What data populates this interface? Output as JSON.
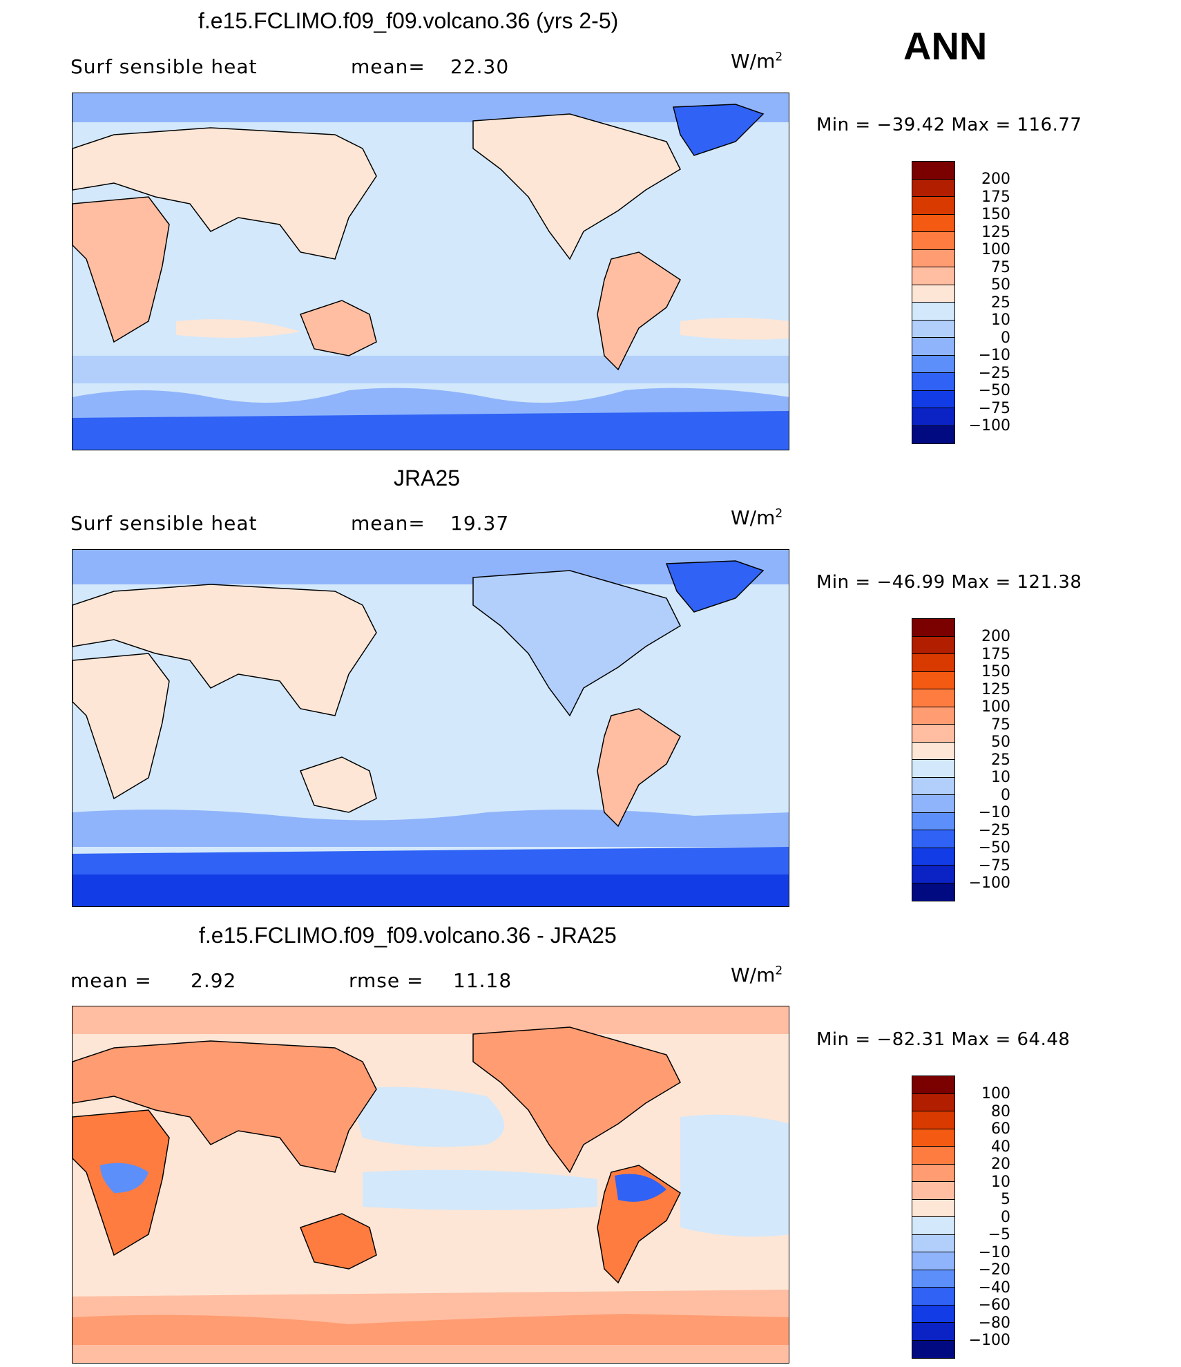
{
  "season": "ANN",
  "units_base": "W/m",
  "units_exp": "2",
  "panels": [
    {
      "title": "f.e15.FCLIMO.f09_f09.volcano.36 (yrs 2-5)",
      "left_label": "Surf  sensible  heat",
      "stat_label": "mean=",
      "stat_value": "22.30",
      "min_label": "Min  =  −39.42  Max  =  116.77",
      "colorbar": {
        "levels": [
          "200",
          "175",
          "150",
          "125",
          "100",
          "75",
          "50",
          "25",
          "10",
          "0",
          "−10",
          "−25",
          "−50",
          "−75",
          "−100"
        ],
        "colors": [
          "#7b0000",
          "#b21e00",
          "#d83a00",
          "#f55a12",
          "#ff7c40",
          "#ff9c72",
          "#ffbea2",
          "#fde6d6",
          "#d3e8fb",
          "#b2cffb",
          "#8fb4fb",
          "#5d8ffb",
          "#2f62f5",
          "#123ce6",
          "#0b22c4",
          "#020a82"
        ]
      }
    },
    {
      "title": "JRA25",
      "left_label": "Surf  sensible  heat",
      "stat_label": "mean=",
      "stat_value": "19.37",
      "min_label": "Min  =  −46.99  Max  =  121.38",
      "colorbar": {
        "levels": [
          "200",
          "175",
          "150",
          "125",
          "100",
          "75",
          "50",
          "25",
          "10",
          "0",
          "−10",
          "−25",
          "−50",
          "−75",
          "−100"
        ],
        "colors": [
          "#7b0000",
          "#b21e00",
          "#d83a00",
          "#f55a12",
          "#ff7c40",
          "#ff9c72",
          "#ffbea2",
          "#fde6d6",
          "#d3e8fb",
          "#b2cffb",
          "#8fb4fb",
          "#5d8ffb",
          "#2f62f5",
          "#123ce6",
          "#0b22c4",
          "#020a82"
        ]
      }
    },
    {
      "title": "f.e15.FCLIMO.f09_f09.volcano.36 - JRA25",
      "left_label": "mean  =",
      "left_value": "2.92",
      "stat_label": "rmse  =",
      "stat_value": "11.18",
      "min_label": "Min  =  −82.31  Max  =   64.48",
      "colorbar": {
        "levels": [
          "100",
          "80",
          "60",
          "40",
          "20",
          "10",
          "5",
          "0",
          "−5",
          "−10",
          "−20",
          "−40",
          "−60",
          "−80",
          "−100"
        ],
        "colors": [
          "#7b0000",
          "#b21e00",
          "#d83a00",
          "#f55a12",
          "#ff7c40",
          "#ff9c72",
          "#ffbea2",
          "#fde6d6",
          "#d3e8fb",
          "#b2cffb",
          "#8fb4fb",
          "#5d8ffb",
          "#2f62f5",
          "#123ce6",
          "#0b22c4",
          "#020a82"
        ]
      }
    }
  ],
  "chart_data": [
    {
      "type": "heatmap",
      "title": "f.e15.FCLIMO.f09_f09.volcano.36 (yrs 2-5)",
      "variable": "Surf sensible heat",
      "units": "W/m2",
      "mean": 22.3,
      "min": -39.42,
      "max": 116.77,
      "levels": [
        -100,
        -75,
        -50,
        -25,
        -10,
        0,
        10,
        25,
        50,
        75,
        100,
        125,
        150,
        175,
        200
      ]
    },
    {
      "type": "heatmap",
      "title": "JRA25",
      "variable": "Surf sensible heat",
      "units": "W/m2",
      "mean": 19.37,
      "min": -46.99,
      "max": 121.38,
      "levels": [
        -100,
        -75,
        -50,
        -25,
        -10,
        0,
        10,
        25,
        50,
        75,
        100,
        125,
        150,
        175,
        200
      ]
    },
    {
      "type": "heatmap",
      "title": "f.e15.FCLIMO.f09_f09.volcano.36 - JRA25",
      "units": "W/m2",
      "mean": 2.92,
      "rmse": 11.18,
      "min": -82.31,
      "max": 64.48,
      "levels": [
        -100,
        -80,
        -60,
        -40,
        -20,
        -10,
        -5,
        0,
        5,
        10,
        20,
        40,
        60,
        80,
        100
      ]
    }
  ]
}
